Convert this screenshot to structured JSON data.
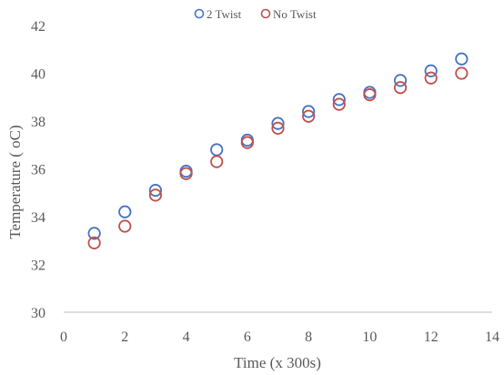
{
  "chart_data": {
    "type": "scatter",
    "title": "",
    "xlabel": "Time (x 300s)",
    "ylabel": "Temperature ( oC)",
    "xlim": [
      0,
      14
    ],
    "ylim": [
      30,
      42
    ],
    "xticks": [
      0,
      2,
      4,
      6,
      8,
      10,
      12,
      14
    ],
    "yticks": [
      30,
      32,
      34,
      36,
      38,
      40,
      42
    ],
    "grid": false,
    "legend_position": "top",
    "series": [
      {
        "name": "2 Twist",
        "color": "#4472c4",
        "marker": "open-circle",
        "x": [
          1,
          2,
          3,
          4,
          5,
          6,
          7,
          8,
          9,
          10,
          11,
          12,
          13
        ],
        "y": [
          33.3,
          34.2,
          35.1,
          35.9,
          36.8,
          37.2,
          37.9,
          38.4,
          38.9,
          39.2,
          39.7,
          40.1,
          40.6
        ]
      },
      {
        "name": "No Twist",
        "color": "#c0504d",
        "marker": "open-circle",
        "x": [
          1,
          2,
          3,
          4,
          5,
          6,
          7,
          8,
          9,
          10,
          11,
          12,
          13
        ],
        "y": [
          32.9,
          33.6,
          34.9,
          35.8,
          36.3,
          37.1,
          37.7,
          38.2,
          38.7,
          39.1,
          39.4,
          39.8,
          40.0
        ]
      }
    ]
  }
}
